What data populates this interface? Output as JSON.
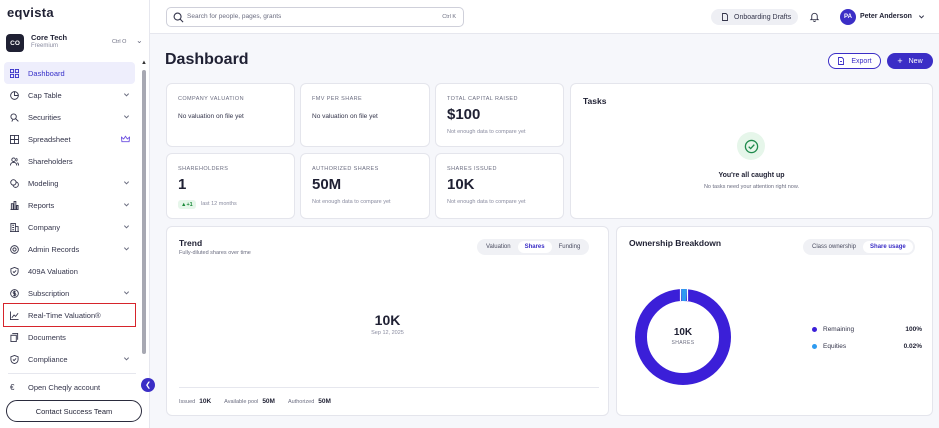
{
  "app": {
    "logo": "eqvista"
  },
  "org": {
    "initials": "CO",
    "name": "Core Tech",
    "plan": "Freemium",
    "shortcut": "Ctrl O"
  },
  "sidebar": {
    "items": [
      {
        "label": "Dashboard",
        "icon": "grid-icon",
        "chevron": false,
        "active": true
      },
      {
        "label": "Cap Table",
        "icon": "pie-chart-icon",
        "chevron": true
      },
      {
        "label": "Securities",
        "icon": "badge-icon",
        "chevron": true
      },
      {
        "label": "Spreadsheet",
        "icon": "table-icon",
        "crown": true
      },
      {
        "label": "Shareholders",
        "icon": "users-icon"
      },
      {
        "label": "Modeling",
        "icon": "coins-icon",
        "chevron": true
      },
      {
        "label": "Reports",
        "icon": "report-icon",
        "chevron": true
      },
      {
        "label": "Company",
        "icon": "building-icon",
        "chevron": true
      },
      {
        "label": "Admin Records",
        "icon": "record-icon",
        "chevron": true
      },
      {
        "label": "409A Valuation",
        "icon": "shield-check-icon"
      },
      {
        "label": "Subscription",
        "icon": "dollar-icon",
        "chevron": true
      },
      {
        "label": "Real-Time Valuation®",
        "icon": "line-chart-icon",
        "highlighted": true
      },
      {
        "label": "Documents",
        "icon": "document-icon"
      },
      {
        "label": "Compliance",
        "icon": "shield-icon",
        "chevron": true
      }
    ],
    "cheqly_label": "Open Cheqly account",
    "contact_label": "Contact Success Team"
  },
  "topbar": {
    "search_placeholder": "Search for people, pages, grants",
    "search_shortcut": "Ctrl K",
    "onboarding_label": "Onboarding Drafts",
    "user_initials": "PA",
    "user_name": "Peter Anderson"
  },
  "page": {
    "title": "Dashboard",
    "export_label": "Export",
    "new_label": "New"
  },
  "metrics": [
    {
      "label": "COMPANY VALUATION",
      "sub": "No valuation on file yet"
    },
    {
      "label": "FMV PER SHARE",
      "sub": "No valuation on file yet"
    },
    {
      "label": "TOTAL CAPITAL RAISED",
      "value": "$100",
      "note": "Not enough data to compare yet"
    },
    {
      "label": "SHAREHOLDERS",
      "value": "1",
      "delta": "▲+1",
      "note": "last 12 months"
    },
    {
      "label": "AUTHORIZED SHARES",
      "value": "50M",
      "note": "Not enough data to compare yet"
    },
    {
      "label": "SHARES ISSUED",
      "value": "10K",
      "note": "Not enough data to compare yet"
    }
  ],
  "tasks": {
    "title": "Tasks",
    "empty_title": "You're all caught up",
    "empty_sub": "No tasks need your attention right now."
  },
  "trend": {
    "title": "Trend",
    "subtitle": "Fully-diluted shares over time",
    "tabs": [
      "Valuation",
      "Shares",
      "Funding"
    ],
    "active_tab": 1,
    "value": "10K",
    "date": "Sep 12, 2025",
    "footer": [
      {
        "label": "Issued",
        "value": "10K"
      },
      {
        "label": "Available pool",
        "value": "50M"
      },
      {
        "label": "Authorized",
        "value": "50M"
      }
    ]
  },
  "ownership": {
    "title": "Ownership Breakdown",
    "tabs": [
      "Class ownership",
      "Share usage"
    ],
    "active_tab": 1,
    "center_value": "10K",
    "center_unit": "SHARES",
    "legend": [
      {
        "label": "Remaining",
        "value": "100%",
        "color": "#3b1fd8",
        "fraction": 0.9998
      },
      {
        "label": "Equities",
        "value": "0.02%",
        "color": "#2e9bf0",
        "fraction": 0.0002
      }
    ]
  },
  "colors": {
    "accent": "#3b2ec6",
    "donut_main": "#3b1fd8",
    "donut_minor": "#2e9bf0",
    "highlight_box": "#d6242b"
  }
}
